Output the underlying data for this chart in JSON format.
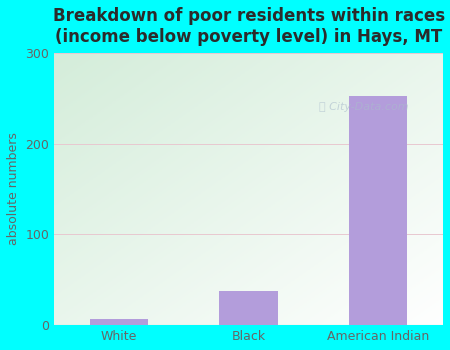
{
  "title": "Breakdown of poor residents within races\n(income below poverty level) in Hays, MT",
  "categories": [
    "White",
    "Black",
    "American Indian"
  ],
  "values": [
    7,
    38,
    252
  ],
  "bar_color": "#b39ddb",
  "ylabel": "absolute numbers",
  "ylim": [
    0,
    300
  ],
  "yticks": [
    0,
    100,
    200,
    300
  ],
  "background_outer": "#00ffff",
  "plot_bg_left": "#d4edda",
  "plot_bg_right": "#ffffff",
  "grid_color": "#e8c8d0",
  "grid_linewidth": 0.7,
  "title_fontsize": 12,
  "title_color": "#2b2b2b",
  "axis_text_color": "#666666",
  "label_fontsize": 9,
  "tick_fontsize": 9,
  "watermark_text": "City-Data.com",
  "watermark_color": "#aabbcc",
  "watermark_alpha": 0.6
}
